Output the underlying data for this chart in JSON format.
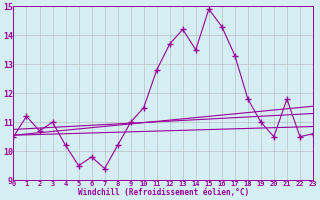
{
  "x": [
    0,
    1,
    2,
    3,
    4,
    5,
    6,
    7,
    8,
    9,
    10,
    11,
    12,
    13,
    14,
    15,
    16,
    17,
    18,
    19,
    20,
    21,
    22,
    23
  ],
  "windchill": [
    10.5,
    11.2,
    10.7,
    11.0,
    10.2,
    9.5,
    9.8,
    9.4,
    10.2,
    11.0,
    11.5,
    12.8,
    13.7,
    14.2,
    13.5,
    14.9,
    14.3,
    13.3,
    11.8,
    11.0,
    10.5,
    11.8,
    10.5,
    10.6
  ],
  "trend1_start": 10.55,
  "trend1_end": 11.55,
  "trend2_start": 10.75,
  "trend2_end": 11.3,
  "trend3_start": 10.55,
  "trend3_end": 10.85,
  "color": "#990099",
  "bg_color": "#d4eef4",
  "grid_color": "#aaaaaa",
  "xlim": [
    0,
    23
  ],
  "ylim": [
    9,
    15
  ],
  "xlabel": "Windchill (Refroidissement éolien,°C)",
  "yticks": [
    9,
    10,
    11,
    12,
    13,
    14,
    15
  ],
  "xticks": [
    0,
    1,
    2,
    3,
    4,
    5,
    6,
    7,
    8,
    9,
    10,
    11,
    12,
    13,
    14,
    15,
    16,
    17,
    18,
    19,
    20,
    21,
    22,
    23
  ]
}
